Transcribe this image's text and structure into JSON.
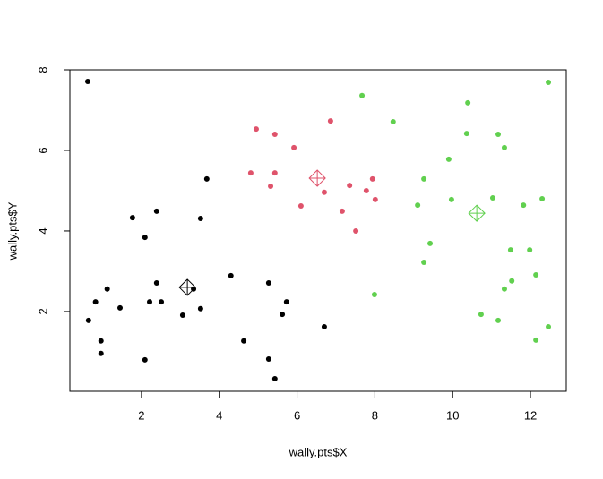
{
  "chart_data": {
    "type": "scatter",
    "xlabel": "wally.pts$X",
    "ylabel": "wally.pts$Y",
    "xlim": [
      0.16,
      12.92
    ],
    "ylim": [
      0.02,
      8
    ],
    "xticks": [
      2,
      4,
      6,
      8,
      10,
      12
    ],
    "yticks": [
      2,
      4,
      6,
      8
    ],
    "series": [
      {
        "color": "#000000",
        "x": [
          0.62,
          0.64,
          0.82,
          1.12,
          1.45,
          0.96,
          0.96,
          1.77,
          2.09,
          2.39,
          2.21,
          2.39,
          2.51,
          2.09,
          3.06,
          3.34,
          3.52,
          3.52,
          3.68,
          4.3,
          4.63,
          5.27,
          5.27,
          5.43,
          5.62,
          5.73,
          6.7
        ],
        "values": [
          7.71,
          1.78,
          2.24,
          2.56,
          2.09,
          1.27,
          0.96,
          4.33,
          3.84,
          4.49,
          2.24,
          2.71,
          2.24,
          0.8,
          1.91,
          2.56,
          2.07,
          4.31,
          5.29,
          2.89,
          1.27,
          2.71,
          0.82,
          0.33,
          1.93,
          2.24,
          1.62
        ],
        "center": [
          3.18,
          2.6
        ]
      },
      {
        "color": "#DF536B",
        "x": [
          4.95,
          4.81,
          5.43,
          5.43,
          5.32,
          5.92,
          6.1,
          6.7,
          6.86,
          7.16,
          7.35,
          7.51,
          7.78,
          7.94,
          8.01
        ],
        "values": [
          6.53,
          5.44,
          6.4,
          5.44,
          5.11,
          6.07,
          4.62,
          4.96,
          6.73,
          4.49,
          5.13,
          4.0,
          5.0,
          5.29,
          4.78
        ],
        "center": [
          6.52,
          5.31
        ]
      },
      {
        "color": "#61D04F",
        "x": [
          7.67,
          8.47,
          7.99,
          9.1,
          9.26,
          9.42,
          9.26,
          9.9,
          9.97,
          10.36,
          10.39,
          10.73,
          11.03,
          11.17,
          11.17,
          11.33,
          11.33,
          11.49,
          11.52,
          11.82,
          11.98,
          12.14,
          12.14,
          12.3,
          12.46,
          12.46
        ],
        "values": [
          7.36,
          6.71,
          2.42,
          4.64,
          5.29,
          3.69,
          3.22,
          5.78,
          4.78,
          6.42,
          7.18,
          1.93,
          4.82,
          6.4,
          1.78,
          6.07,
          2.56,
          3.53,
          2.76,
          4.64,
          3.53,
          2.91,
          1.29,
          4.8,
          1.62,
          7.69
        ],
        "center": [
          10.62,
          4.44
        ]
      }
    ]
  }
}
